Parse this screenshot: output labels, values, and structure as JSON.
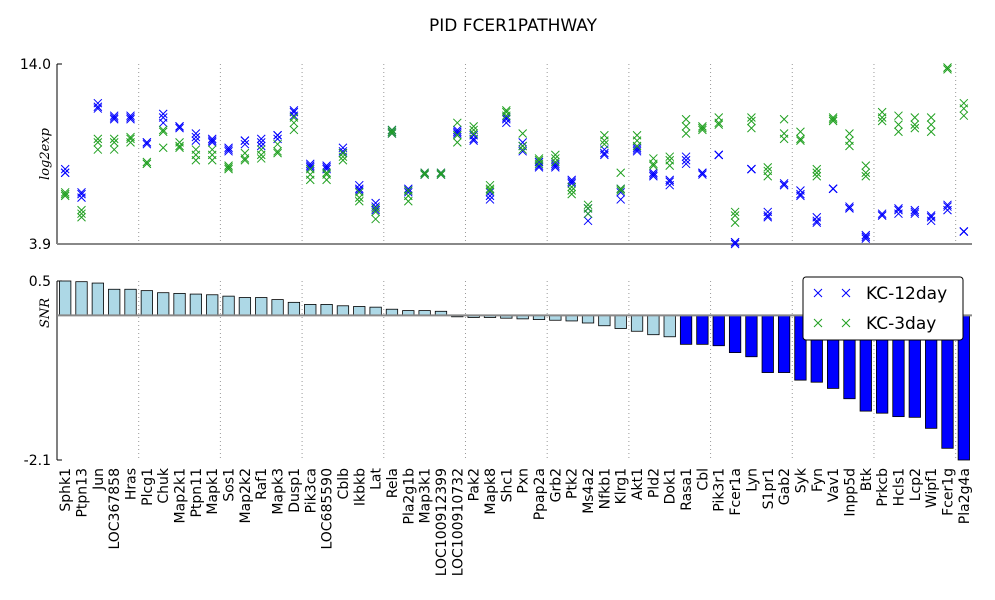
{
  "chart_data": [
    {
      "type": "scatter",
      "title": "PID FCER1PATHWAY",
      "y_label": "log2exp",
      "ylim": [
        3.9,
        14.0
      ],
      "yticks": [
        3.9,
        {
          "value": 14.0,
          "label": "14.0"
        }
      ],
      "series": [
        {
          "name": "KC-12day",
          "color": "#0000ff",
          "values": [
            [
              8.1,
              7.9,
              7.9
            ],
            [
              6.8,
              6.7,
              6.5
            ],
            [
              11.8,
              11.6,
              11.5
            ],
            [
              11.1,
              11.0,
              10.9
            ],
            [
              11.1,
              11.0,
              10.9
            ],
            [
              9.6,
              9.6,
              9.5
            ],
            [
              11.2,
              11.0,
              10.7
            ],
            [
              10.5,
              10.5,
              10.4
            ],
            [
              10.1,
              9.9,
              9.7
            ],
            [
              9.8,
              9.7,
              9.6
            ],
            [
              9.3,
              9.2,
              9.1
            ],
            [
              9.7,
              9.7,
              9.5
            ],
            [
              9.8,
              9.6,
              9.4
            ],
            [
              10.0,
              10.0,
              9.8
            ],
            [
              11.4,
              11.3,
              11.1
            ],
            [
              8.4,
              8.3,
              8.2
            ],
            [
              8.3,
              8.2,
              8.1
            ],
            [
              9.3,
              9.1,
              9.0
            ],
            [
              7.2,
              7.0,
              6.9
            ],
            [
              6.2,
              6.0,
              5.8
            ],
            [
              10.3,
              10.2,
              10.1
            ],
            [
              7.0,
              6.9,
              6.8
            ],
            [
              7.9,
              7.8,
              7.8
            ],
            [
              7.9,
              7.8,
              7.8
            ],
            [
              10.3,
              10.2,
              10.1
            ],
            [
              10.0,
              9.8,
              9.7
            ],
            [
              6.8,
              6.6,
              6.4
            ],
            [
              11.0,
              10.9,
              10.7
            ],
            [
              9.6,
              9.4,
              9.1
            ],
            [
              8.5,
              8.3,
              8.2
            ],
            [
              8.4,
              8.3,
              8.2
            ],
            [
              7.5,
              7.4,
              7.3
            ],
            [
              5.9,
              5.6,
              5.2
            ],
            [
              9.2,
              9.0,
              8.9
            ],
            [
              7.0,
              6.8,
              6.4
            ],
            [
              9.3,
              9.2,
              9.1
            ],
            [
              7.9,
              7.8,
              7.7
            ],
            [
              7.5,
              7.4,
              7.2
            ],
            [
              8.8,
              8.6,
              8.4
            ],
            [
              7.9,
              7.9,
              7.8
            ],
            [
              8.9,
              8.9,
              8.9
            ],
            [
              4.0,
              4.0,
              3.9
            ],
            [
              8.1,
              8.1,
              8.1
            ],
            [
              5.7,
              5.5,
              5.4
            ],
            [
              7.3,
              7.2,
              7.2
            ],
            [
              6.9,
              6.7,
              6.6
            ],
            [
              5.4,
              5.2,
              5.1
            ],
            [
              7.0,
              7.0,
              7.0
            ],
            [
              6.0,
              5.9,
              5.9
            ],
            [
              4.4,
              4.3,
              4.2
            ],
            [
              5.6,
              5.5,
              5.5
            ],
            [
              5.9,
              5.8,
              5.6
            ],
            [
              5.8,
              5.7,
              5.6
            ],
            [
              5.5,
              5.4,
              5.2
            ],
            [
              6.1,
              6.0,
              5.8
            ],
            [
              4.6,
              4.6,
              4.6
            ]
          ]
        },
        {
          "name": "KC-3day",
          "color": "#20a020",
          "values": [
            [
              6.8,
              6.6,
              6.7
            ],
            [
              5.8,
              5.6,
              5.4
            ],
            [
              9.8,
              9.6,
              9.2
            ],
            [
              9.8,
              9.6,
              9.2
            ],
            [
              9.9,
              9.8,
              9.6
            ],
            [
              8.5,
              8.4,
              8.4
            ],
            [
              10.3,
              10.2,
              9.3
            ],
            [
              9.6,
              9.4,
              9.3
            ],
            [
              9.2,
              8.9,
              8.6
            ],
            [
              9.2,
              8.9,
              8.6
            ],
            [
              8.3,
              8.2,
              8.1
            ],
            [
              9.0,
              8.7,
              8.6
            ],
            [
              9.2,
              8.9,
              8.7
            ],
            [
              9.5,
              9.1,
              9.0
            ],
            [
              11.0,
              10.7,
              10.3
            ],
            [
              8.1,
              7.8,
              7.5
            ],
            [
              7.9,
              7.8,
              7.5
            ],
            [
              9.0,
              8.8,
              8.6
            ],
            [
              6.8,
              6.5,
              6.3
            ],
            [
              5.9,
              5.7,
              5.3
            ],
            [
              10.3,
              10.2,
              10.1
            ],
            [
              6.9,
              6.6,
              6.3
            ],
            [
              7.9,
              7.8,
              7.8
            ],
            [
              7.9,
              7.8,
              7.8
            ],
            [
              10.7,
              10.0,
              9.6
            ],
            [
              10.5,
              10.3,
              10.1
            ],
            [
              7.2,
              7.0,
              6.9
            ],
            [
              11.4,
              11.3,
              11.1
            ],
            [
              10.1,
              9.4,
              9.2
            ],
            [
              8.7,
              8.6,
              8.4
            ],
            [
              8.9,
              8.7,
              8.5
            ],
            [
              7.1,
              6.9,
              6.7
            ],
            [
              6.1,
              5.9,
              5.6
            ],
            [
              10.0,
              9.7,
              9.5
            ],
            [
              7.9,
              7.0,
              6.9
            ],
            [
              10.0,
              9.7,
              9.4
            ],
            [
              8.7,
              8.4,
              8.3
            ],
            [
              8.8,
              8.6,
              8.3
            ],
            [
              10.9,
              10.5,
              10.1
            ],
            [
              10.5,
              10.4,
              10.3
            ],
            [
              11.0,
              10.7,
              10.6
            ],
            [
              5.7,
              5.5,
              5.1
            ],
            [
              11.0,
              10.8,
              10.4
            ],
            [
              8.2,
              8.0,
              7.7
            ],
            [
              10.9,
              10.1,
              9.8
            ],
            [
              10.2,
              9.8,
              9.7
            ],
            [
              8.1,
              7.9,
              7.7
            ],
            [
              11.0,
              10.9,
              10.8
            ],
            [
              10.1,
              9.7,
              9.4
            ],
            [
              8.3,
              7.9,
              7.7
            ],
            [
              11.3,
              11.0,
              10.8
            ],
            [
              11.1,
              10.6,
              10.2
            ],
            [
              11.0,
              10.6,
              10.4
            ],
            [
              11.0,
              10.6,
              10.2
            ],
            [
              13.8,
              13.8,
              13.7
            ],
            [
              11.8,
              11.5,
              11.1
            ]
          ]
        }
      ]
    },
    {
      "type": "bar",
      "y_label": "SNR",
      "ylim": [
        -2.1,
        0.5
      ],
      "yticks": [
        -2.1,
        0.5
      ],
      "legend": "upper right",
      "categories": [
        "Sphk1",
        "Ptpn13",
        "Jun",
        "LOC367858",
        "Hras",
        "Plcg1",
        "Chuk",
        "Map2k1",
        "Ptpn11",
        "Mapk1",
        "Sos1",
        "Map2k2",
        "Raf1",
        "Mapk3",
        "Dusp1",
        "Pik3ca",
        "LOC685590",
        "Cblb",
        "Ikbkb",
        "Lat",
        "Rela",
        "Pla2g1b",
        "Map3k1",
        "LOC100912399",
        "LOC100910732",
        "Pak2",
        "Mapk8",
        "Shc1",
        "Pxn",
        "Ppap2a",
        "Grb2",
        "Ptk2",
        "Ms4a2",
        "Nfkb1",
        "Klrg1",
        "Akt1",
        "Pld2",
        "Dok1",
        "Rasa1",
        "Cbl",
        "Pik3r1",
        "Fcer1a",
        "Lyn",
        "S1pr1",
        "Gab2",
        "Syk",
        "Fyn",
        "Vav1",
        "Inpp5d",
        "Btk",
        "Prkcb",
        "Hcls1",
        "Lcp2",
        "Wipf1",
        "Fcer1g",
        "Pla2g4a"
      ],
      "values": [
        0.5,
        0.49,
        0.47,
        0.38,
        0.38,
        0.36,
        0.33,
        0.32,
        0.31,
        0.3,
        0.28,
        0.26,
        0.26,
        0.23,
        0.19,
        0.16,
        0.16,
        0.14,
        0.13,
        0.12,
        0.09,
        0.07,
        0.07,
        0.06,
        -0.02,
        -0.03,
        -0.03,
        -0.04,
        -0.05,
        -0.06,
        -0.07,
        -0.08,
        -0.11,
        -0.15,
        -0.19,
        -0.23,
        -0.28,
        -0.31,
        -0.42,
        -0.42,
        -0.44,
        -0.54,
        -0.6,
        -0.83,
        -0.83,
        -0.94,
        -0.97,
        -1.06,
        -1.21,
        -1.39,
        -1.42,
        -1.47,
        -1.48,
        -1.64,
        -1.93,
        -2.1
      ],
      "colors": [
        "#add8e6",
        "#add8e6",
        "#add8e6",
        "#add8e6",
        "#add8e6",
        "#add8e6",
        "#add8e6",
        "#add8e6",
        "#add8e6",
        "#add8e6",
        "#add8e6",
        "#add8e6",
        "#add8e6",
        "#add8e6",
        "#add8e6",
        "#add8e6",
        "#add8e6",
        "#add8e6",
        "#add8e6",
        "#add8e6",
        "#add8e6",
        "#add8e6",
        "#add8e6",
        "#add8e6",
        "#add8e6",
        "#add8e6",
        "#add8e6",
        "#add8e6",
        "#add8e6",
        "#add8e6",
        "#add8e6",
        "#add8e6",
        "#add8e6",
        "#add8e6",
        "#add8e6",
        "#add8e6",
        "#add8e6",
        "#add8e6",
        "#0000ff",
        "#0000ff",
        "#0000ff",
        "#0000ff",
        "#0000ff",
        "#0000ff",
        "#0000ff",
        "#0000ff",
        "#0000ff",
        "#0000ff",
        "#0000ff",
        "#0000ff",
        "#0000ff",
        "#0000ff",
        "#0000ff",
        "#0000ff",
        "#0000ff",
        "#0000ff"
      ]
    }
  ]
}
